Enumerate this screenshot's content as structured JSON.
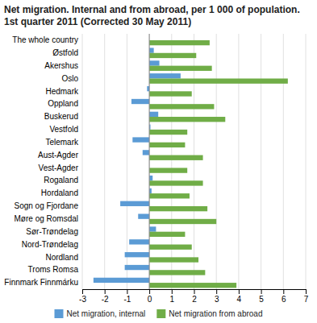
{
  "chart_data": {
    "type": "bar",
    "orientation": "horizontal",
    "title": "Net migration. Internal and from abroad, per 1 000 of population.",
    "subtitle": "1st quarter 2011 (Corrected 30 May 2011)",
    "categories": [
      "The whole country",
      "Østfold",
      "Akershus",
      "Oslo",
      "Hedmark",
      "Oppland",
      "Buskerud",
      "Vestfold",
      "Telemark",
      "Aust-Agder",
      "Vest-Agder",
      "Rogaland",
      "Hordaland",
      "Sogn og Fjordane",
      "Møre og Romsdal",
      "Sør-Trøndelag",
      "Nord-Trøndelag",
      "Nordland",
      "Troms Romsa",
      "Finnmark Finnmárku"
    ],
    "series": [
      {
        "name": "Net migration, internal",
        "color": "#5b9bd5",
        "values": [
          0.0,
          0.2,
          0.45,
          1.4,
          -0.1,
          -0.8,
          0.4,
          0.05,
          -0.75,
          -0.3,
          0.0,
          0.15,
          0.1,
          -1.3,
          -0.5,
          0.3,
          -0.9,
          -1.1,
          -1.1,
          -2.5
        ]
      },
      {
        "name": "Net migration from abroad",
        "color": "#70ad47",
        "values": [
          2.7,
          2.1,
          2.8,
          6.2,
          1.9,
          2.9,
          3.4,
          1.7,
          1.6,
          2.4,
          1.7,
          2.4,
          1.8,
          2.6,
          3.0,
          1.6,
          1.9,
          2.2,
          2.5,
          3.9
        ]
      }
    ],
    "xlim": [
      -3,
      7
    ],
    "xticks": [
      -3,
      -2,
      -1,
      0,
      1,
      2,
      3,
      4,
      5,
      6,
      7
    ],
    "grid": true,
    "legend": "bottom"
  }
}
